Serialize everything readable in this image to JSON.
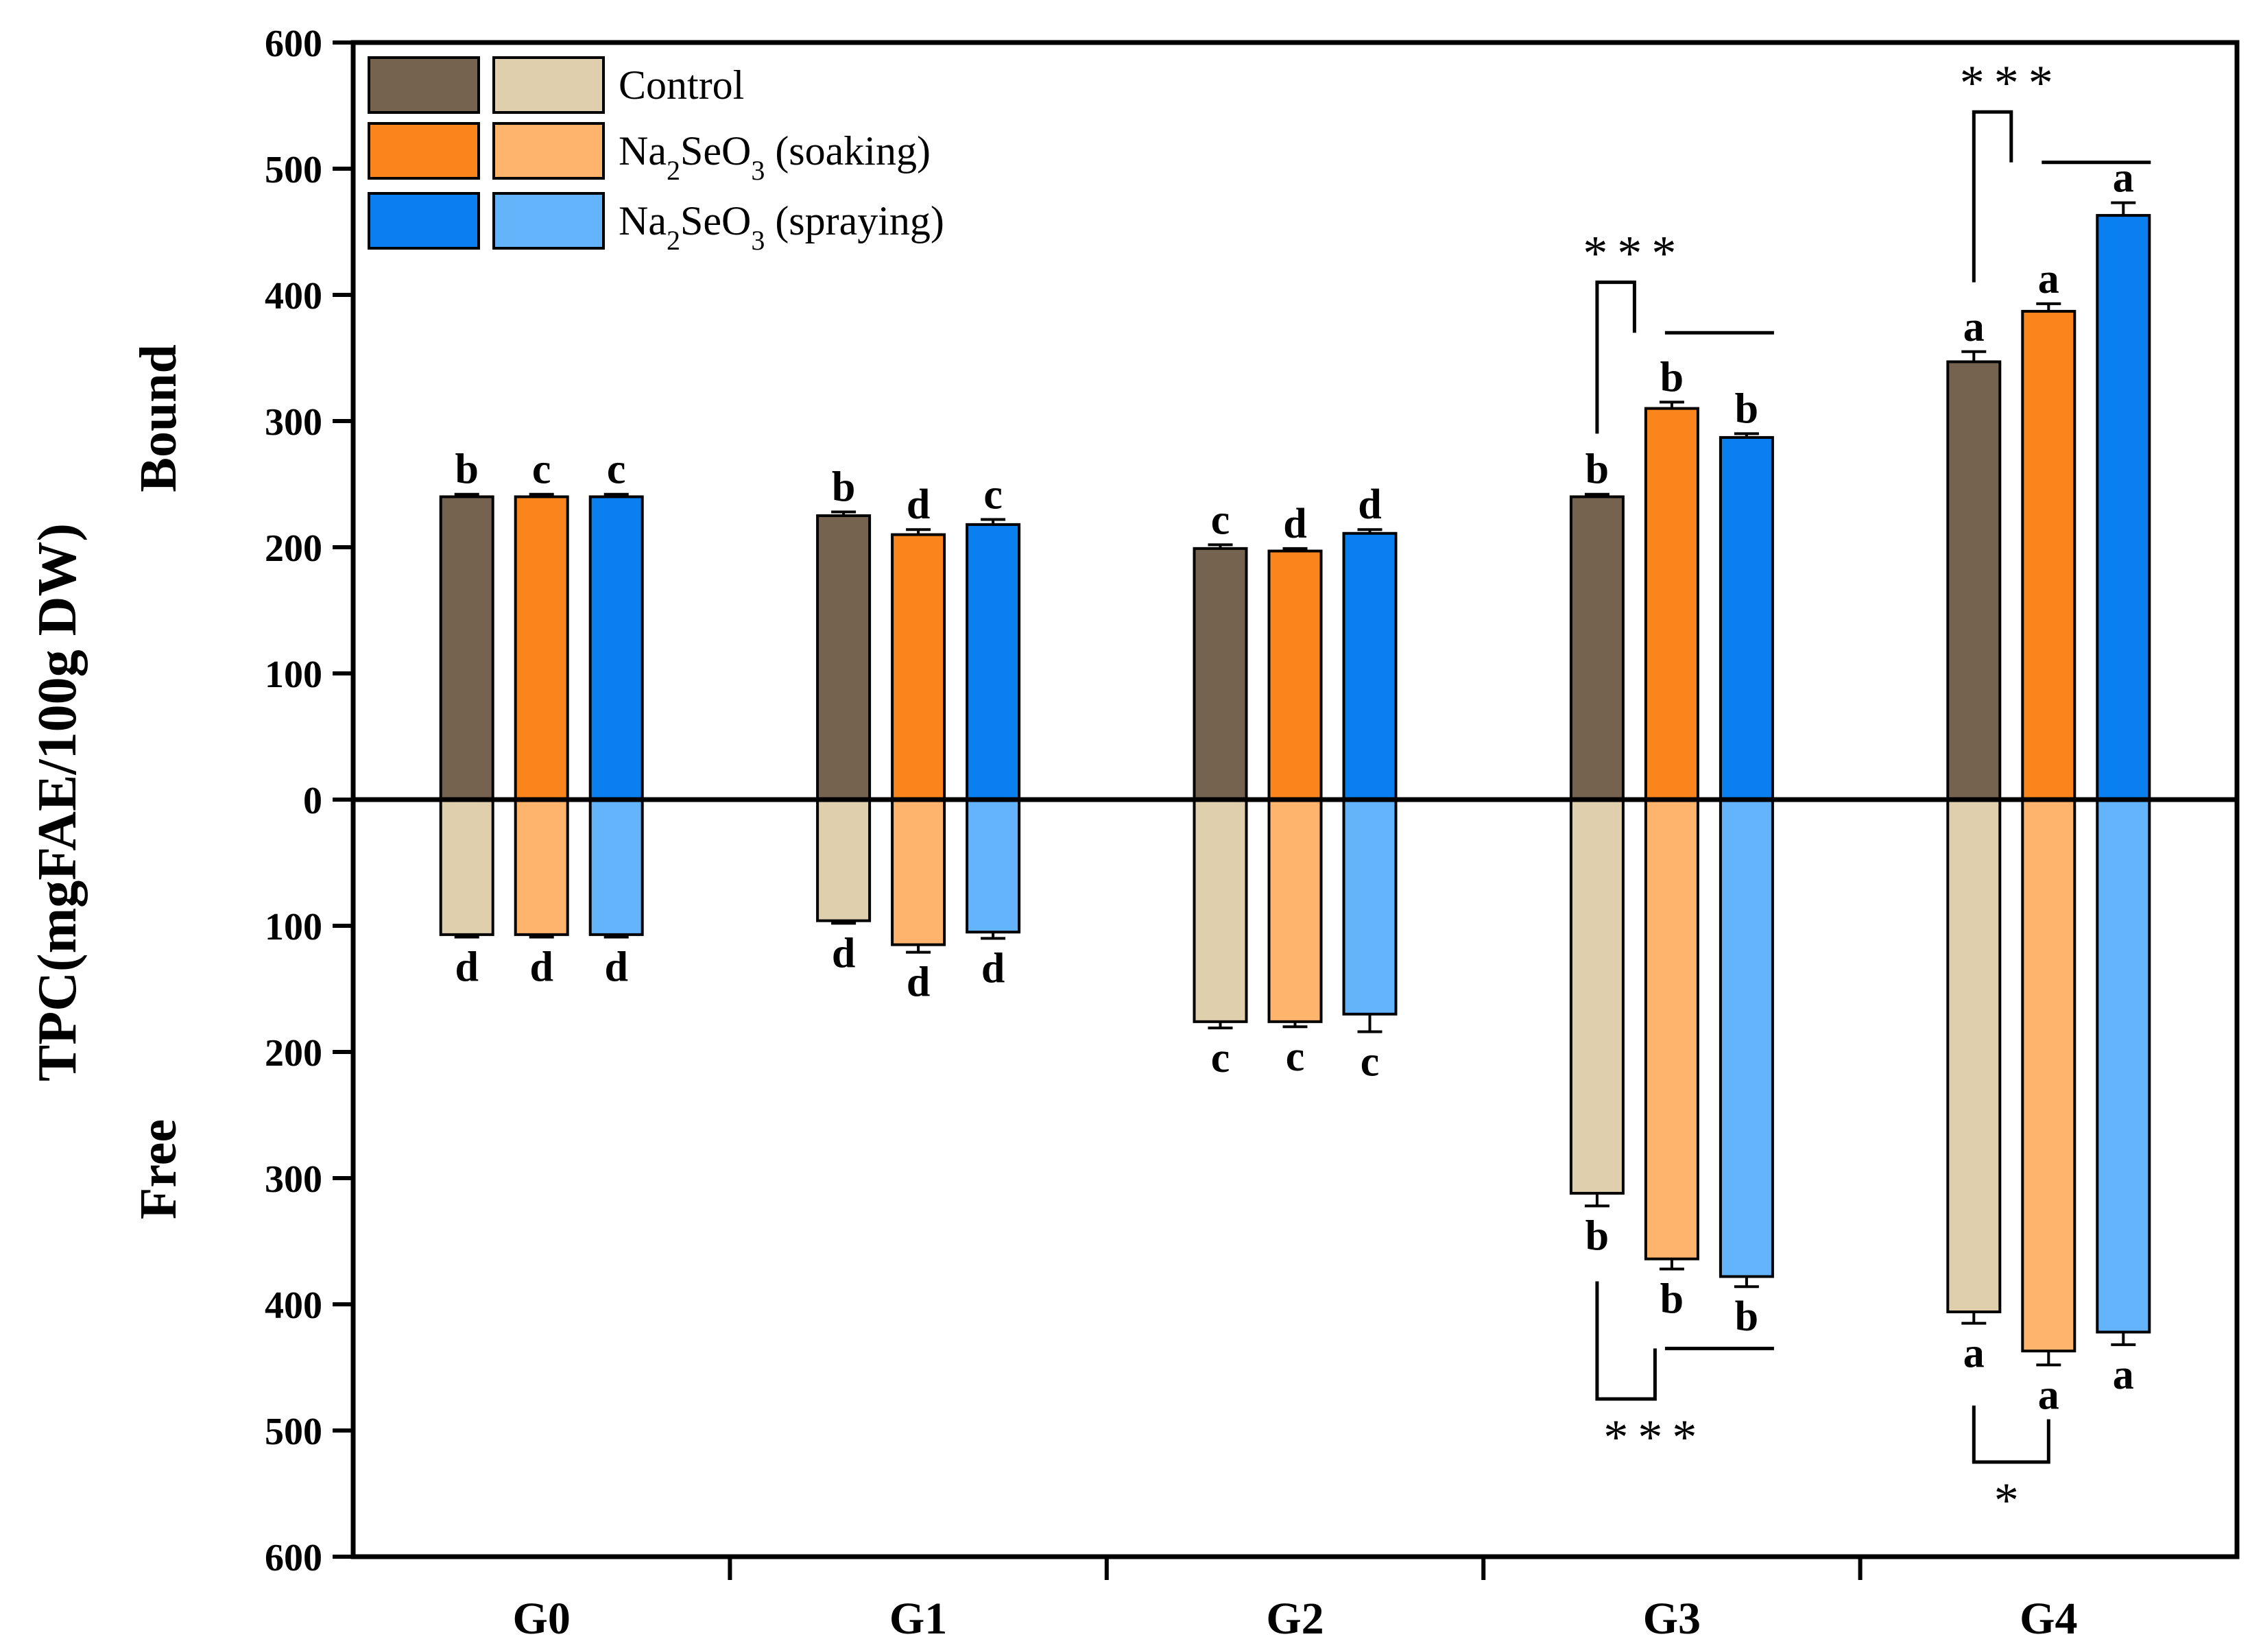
{
  "chart_data": {
    "type": "bar",
    "title": "",
    "ylabel": "TPC(mgFAE/100g DW)",
    "ylabel_top": "Bound",
    "ylabel_bottom": "Free",
    "ylim": [
      -600,
      600
    ],
    "yticks": [
      "600",
      "500",
      "400",
      "300",
      "200",
      "100",
      "0",
      "100",
      "200",
      "300",
      "400",
      "500",
      "600"
    ],
    "categories": [
      "G0",
      "G1",
      "G2",
      "G3",
      "G4"
    ],
    "legend": {
      "position": "top-left",
      "labels": [
        {
          "prefix": "Control",
          "sub": "",
          "suffix": ""
        },
        {
          "prefix": "Na",
          "sub": "2",
          "mid": "SeO",
          "sub2": "3",
          "suffix": " (soaking)"
        },
        {
          "prefix": "Na",
          "sub": "2",
          "mid": "SeO",
          "sub2": "3",
          "suffix": " (spraying)"
        }
      ]
    },
    "series": [
      {
        "name": "Control",
        "bound_color": "#756350",
        "free_color": "#e0cfad",
        "bound": [
          240,
          225,
          199,
          240,
          347
        ],
        "bound_err": [
          2,
          3,
          3,
          2,
          8
        ],
        "free": [
          107,
          96,
          176,
          312,
          406
        ],
        "free_err": [
          2,
          2,
          5,
          10,
          9
        ],
        "bound_letters": [
          "b",
          "b",
          "c",
          "b",
          "a"
        ],
        "free_letters": [
          "d",
          "d",
          "c",
          "b",
          "a"
        ]
      },
      {
        "name": "Na2SeO3 (soaking)",
        "bound_color": "#fb851d",
        "free_color": "#ffb46d",
        "bound": [
          240,
          210,
          197,
          310,
          387
        ],
        "bound_err": [
          2,
          4,
          2,
          5,
          6
        ],
        "free": [
          107,
          115,
          176,
          364,
          437
        ],
        "free_err": [
          2,
          6,
          4,
          8,
          11
        ],
        "bound_letters": [
          "c",
          "d",
          "d",
          "b",
          "a"
        ],
        "free_letters": [
          "d",
          "d",
          "c",
          "b",
          "a"
        ]
      },
      {
        "name": "Na2SeO3 (spraying)",
        "bound_color": "#0a7ff0",
        "free_color": "#64b4fc",
        "bound": [
          240,
          218,
          211,
          287,
          463
        ],
        "bound_err": [
          2,
          4,
          3,
          3,
          10
        ],
        "free": [
          107,
          105,
          170,
          378,
          422
        ],
        "free_err": [
          2,
          5,
          14,
          8,
          10
        ],
        "bound_letters": [
          "c",
          "c",
          "d",
          "b",
          "a"
        ],
        "free_letters": [
          "d",
          "d",
          "c",
          "b",
          "a"
        ]
      }
    ],
    "significance": [
      {
        "category": "G3",
        "side": "bound",
        "label": "***",
        "level": 410
      },
      {
        "category": "G4",
        "side": "bound",
        "label": "***",
        "level": 545
      },
      {
        "category": "G3",
        "side": "free",
        "label": "***",
        "level": 475
      },
      {
        "category": "G4",
        "side": "free",
        "label": "*",
        "level": 525
      }
    ]
  }
}
